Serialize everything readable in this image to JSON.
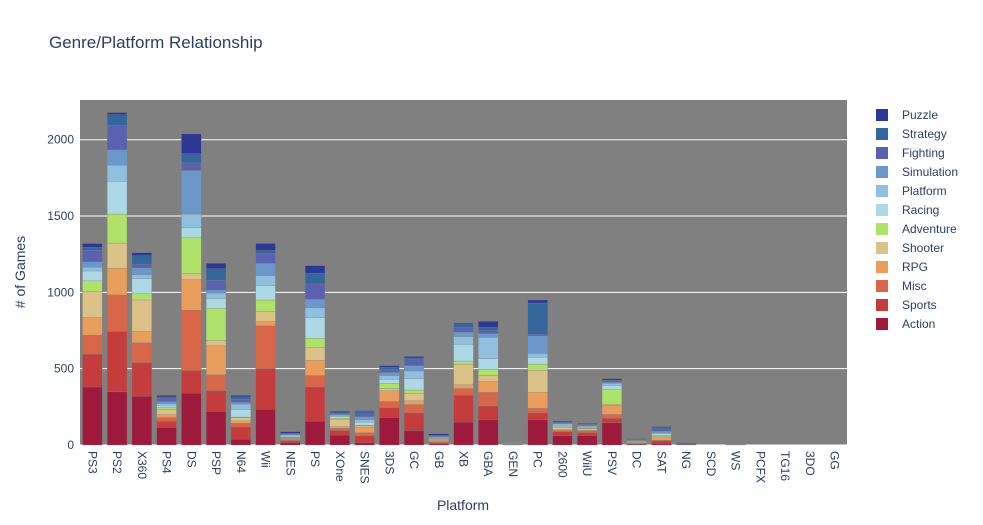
{
  "chart_data": {
    "type": "bar",
    "barmode": "stack",
    "title": "Genre/Platform Relationship",
    "xlabel": "Platform",
    "ylabel": "# of Games",
    "ylim": [
      0,
      2260
    ],
    "yticks": [
      0,
      500,
      1000,
      1500,
      2000
    ],
    "grid": true,
    "legend_position": "right",
    "background": "#808080",
    "categories": [
      "PS3",
      "PS2",
      "X360",
      "PS4",
      "DS",
      "PSP",
      "N64",
      "Wii",
      "NES",
      "PS",
      "XOne",
      "SNES",
      "3DS",
      "GC",
      "GB",
      "XB",
      "GBA",
      "GEN",
      "PC",
      "2600",
      "WiiU",
      "PSV",
      "DC",
      "SAT",
      "NG",
      "SCD",
      "WS",
      "PCFX",
      "TG16",
      "3DO",
      "GG"
    ],
    "series": [
      {
        "name": "Action",
        "color": "#9e1a3c",
        "values": [
          380,
          348,
          320,
          115,
          340,
          220,
          38,
          235,
          15,
          155,
          65,
          15,
          180,
          95,
          8,
          150,
          165,
          2,
          165,
          62,
          62,
          145,
          5,
          12,
          0,
          0,
          0,
          0,
          0,
          0,
          0
        ]
      },
      {
        "name": "Sports",
        "color": "#c53c3c",
        "values": [
          215,
          395,
          220,
          40,
          148,
          135,
          80,
          265,
          12,
          225,
          30,
          45,
          65,
          115,
          8,
          175,
          90,
          2,
          45,
          25,
          18,
          30,
          3,
          15,
          0,
          0,
          0,
          0,
          0,
          0,
          0
        ]
      },
      {
        "name": "Misc",
        "color": "#d86648",
        "values": [
          125,
          240,
          130,
          25,
          395,
          105,
          25,
          280,
          8,
          75,
          15,
          20,
          40,
          55,
          6,
          45,
          90,
          2,
          30,
          8,
          12,
          25,
          2,
          5,
          0,
          0,
          0,
          0,
          0,
          0,
          0
        ]
      },
      {
        "name": "RPG",
        "color": "#e99e5e",
        "values": [
          115,
          175,
          75,
          20,
          200,
          190,
          15,
          30,
          5,
          100,
          10,
          35,
          70,
          25,
          8,
          25,
          70,
          1,
          105,
          5,
          6,
          60,
          3,
          15,
          0,
          0,
          1,
          0,
          0,
          0,
          0
        ]
      },
      {
        "name": "Shooter",
        "color": "#ddc287",
        "values": [
          170,
          165,
          205,
          35,
          40,
          35,
          20,
          65,
          5,
          85,
          45,
          10,
          15,
          50,
          6,
          135,
          40,
          2,
          145,
          15,
          8,
          5,
          2,
          8,
          0,
          0,
          0,
          0,
          0,
          0,
          0
        ]
      },
      {
        "name": "Adventure",
        "color": "#aee26b",
        "values": [
          70,
          190,
          40,
          10,
          235,
          210,
          5,
          75,
          3,
          60,
          10,
          5,
          35,
          20,
          4,
          20,
          40,
          1,
          40,
          5,
          5,
          100,
          5,
          10,
          0,
          0,
          0,
          0,
          0,
          0,
          0
        ]
      },
      {
        "name": "Racing",
        "color": "#add8e6",
        "values": [
          65,
          215,
          100,
          15,
          65,
          65,
          50,
          95,
          3,
          135,
          12,
          20,
          25,
          75,
          3,
          110,
          70,
          3,
          45,
          10,
          5,
          25,
          5,
          8,
          0,
          0,
          0,
          0,
          0,
          0,
          0
        ]
      },
      {
        "name": "Platform",
        "color": "#90c0e0",
        "values": [
          25,
          105,
          25,
          10,
          90,
          35,
          35,
          65,
          15,
          65,
          8,
          15,
          25,
          50,
          8,
          50,
          140,
          3,
          25,
          8,
          8,
          15,
          4,
          8,
          0,
          0,
          0,
          0,
          0,
          0,
          0
        ]
      },
      {
        "name": "Simulation",
        "color": "#6c97cb",
        "values": [
          35,
          100,
          45,
          15,
          285,
          20,
          12,
          80,
          3,
          55,
          5,
          20,
          20,
          35,
          4,
          30,
          25,
          2,
          115,
          5,
          4,
          5,
          3,
          10,
          0,
          0,
          0,
          0,
          0,
          0,
          0
        ]
      },
      {
        "name": "Fighting",
        "color": "#5a62b0",
        "values": [
          75,
          160,
          25,
          20,
          50,
          65,
          20,
          65,
          3,
          100,
          8,
          20,
          20,
          40,
          4,
          30,
          20,
          2,
          10,
          5,
          5,
          10,
          5,
          15,
          5,
          0,
          0,
          0,
          0,
          0,
          0
        ]
      },
      {
        "name": "Strategy",
        "color": "#33679c",
        "values": [
          20,
          70,
          55,
          10,
          60,
          75,
          15,
          20,
          5,
          70,
          10,
          15,
          15,
          10,
          5,
          25,
          20,
          1,
          205,
          5,
          3,
          5,
          2,
          15,
          2,
          0,
          0,
          0,
          0,
          0,
          0
        ]
      },
      {
        "name": "Puzzle",
        "color": "#2b3994",
        "values": [
          25,
          15,
          20,
          10,
          130,
          35,
          10,
          45,
          10,
          50,
          5,
          5,
          10,
          10,
          10,
          5,
          40,
          0,
          20,
          5,
          5,
          10,
          3,
          2,
          5,
          0,
          0,
          0,
          0,
          0,
          0
        ]
      }
    ]
  }
}
